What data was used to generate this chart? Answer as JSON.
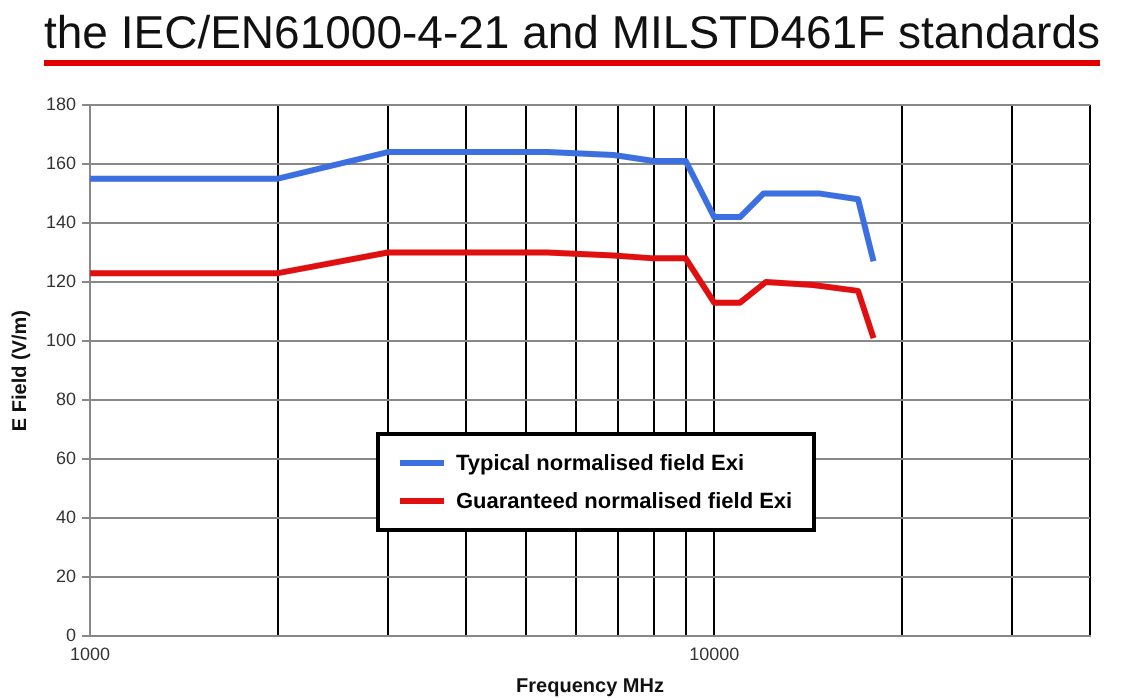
{
  "chart_data": {
    "type": "line",
    "title": "the IEC/EN61000-4-21 and MILSTD461F standards",
    "xlabel": "Frequency MHz",
    "ylabel": "E Field (V/m)",
    "log": "x",
    "xlim": [
      1000,
      40000
    ],
    "xticks": [
      1000,
      {
        "value": 2000,
        "label": null
      },
      {
        "value": 3000,
        "label": null
      },
      {
        "value": 4000,
        "label": null
      },
      {
        "value": 5000,
        "label": null
      },
      {
        "value": 6000,
        "label": null
      },
      {
        "value": 7000,
        "label": null
      },
      {
        "value": 8000,
        "label": null
      },
      {
        "value": 9000,
        "label": null
      },
      10000,
      {
        "value": 20000,
        "label": null
      },
      {
        "value": 30000,
        "label": null
      },
      {
        "value": 40000,
        "label": null
      }
    ],
    "ylim": [
      0,
      180
    ],
    "yticks": [
      0,
      20,
      40,
      60,
      80,
      100,
      120,
      140,
      160,
      180
    ],
    "grid": true,
    "legend": "bottom",
    "marker": "none",
    "line_style": "solid",
    "series": [
      {
        "name": "Typical normalised field Exi",
        "color": "#3c6fe0",
        "x": [
          1000,
          2000,
          3000,
          5400,
          6900,
          8000,
          9000,
          10000,
          11000,
          12000,
          14700,
          17000,
          18000
        ],
        "values": [
          155,
          155,
          164,
          164,
          163,
          161,
          161,
          142,
          142,
          150,
          150,
          148,
          127
        ]
      },
      {
        "name": "Guaranteed normalised field Exi",
        "color": "#e01010",
        "x": [
          1000,
          2000,
          3000,
          5400,
          6900,
          8000,
          9000,
          10000,
          11000,
          12100,
          14400,
          17000,
          18000
        ],
        "values": [
          123,
          123,
          130,
          130,
          129,
          128,
          128,
          113,
          113,
          120,
          119,
          117,
          101
        ]
      }
    ]
  }
}
